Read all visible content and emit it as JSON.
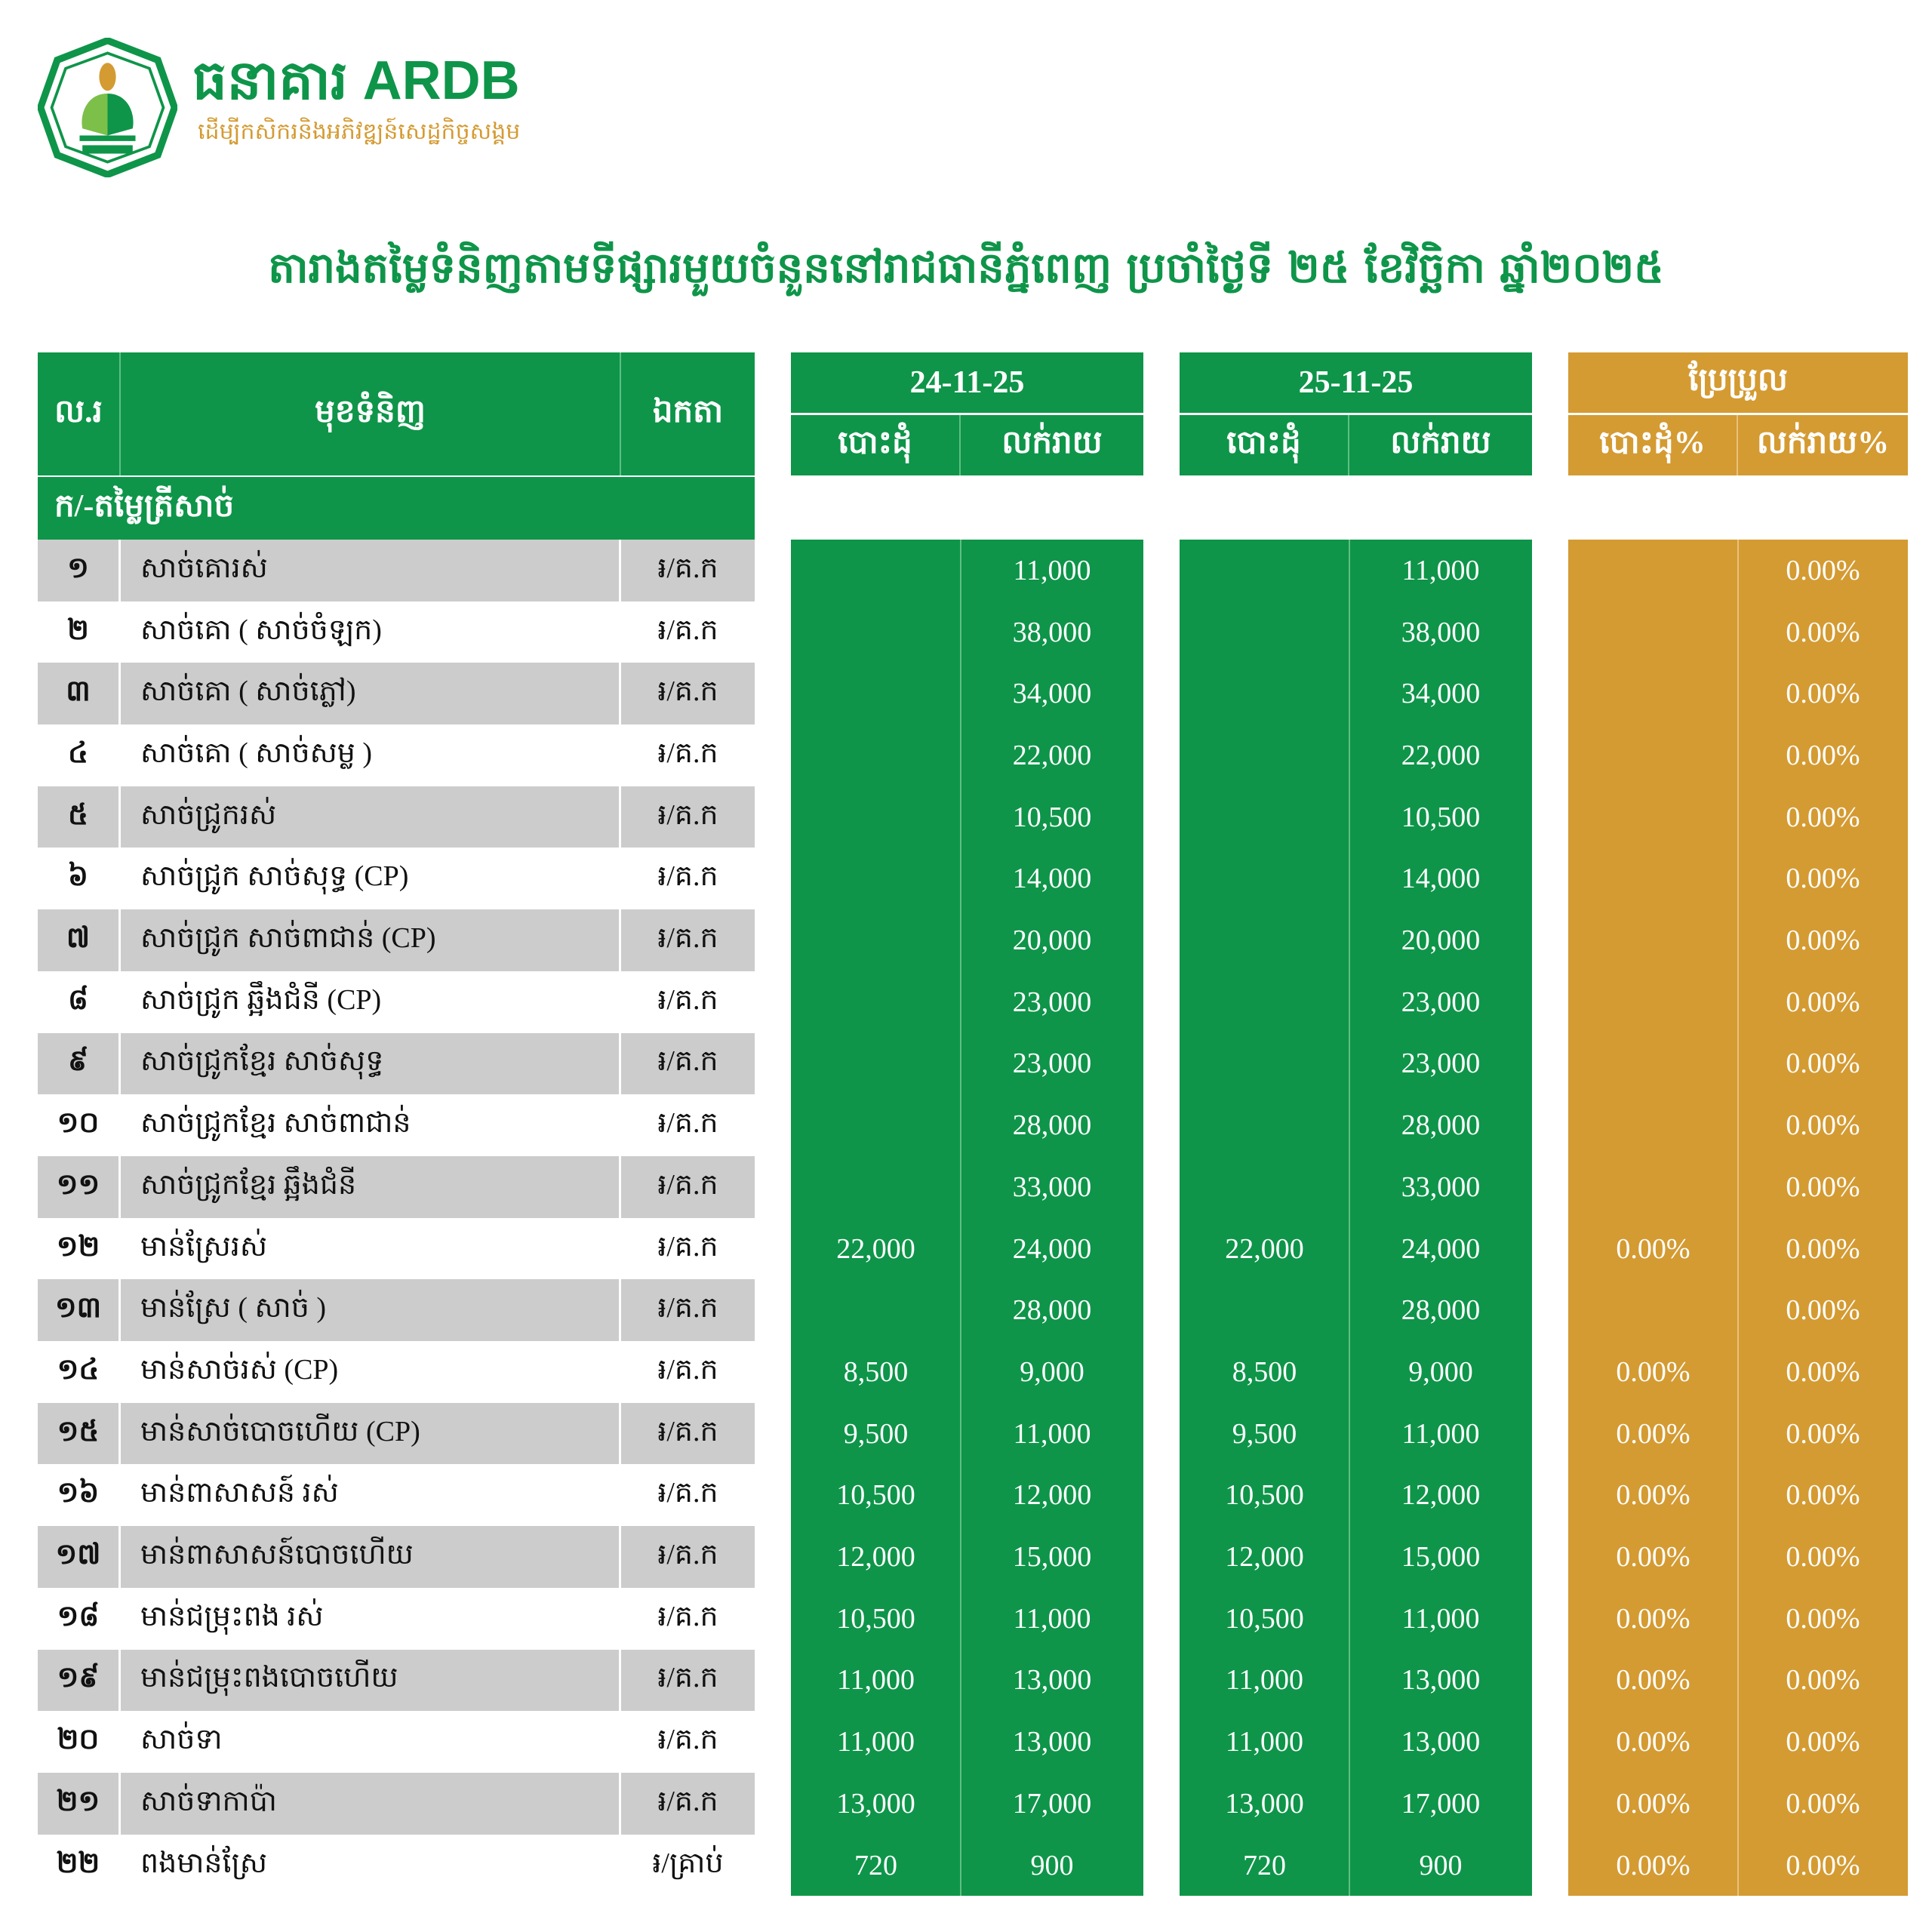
{
  "brand": {
    "name": "ធនាគារ ARDB",
    "tagline": "ដើម្បីកសិករនិងអភិវឌ្ឍន៍សេដ្ឋកិច្ចសង្គម"
  },
  "title": "តារាងតម្លៃទំនិញតាមទីផ្សារមួយចំនួននៅរាជធានីភ្នំពេញ ប្រចាំថ្ងៃទី ២៥ ខែវិច្ឆិកា ឆ្នាំ២០២៥",
  "colors": {
    "green": "#0e9549",
    "gold": "#d49b33",
    "row_gray": "#cccccc"
  },
  "table": {
    "headers": {
      "no": "ល.រ",
      "item": "មុខទំនិញ",
      "unit": "ឯកតា",
      "date1": "24-11-25",
      "date2": "25-11-25",
      "change": "ប្រែប្រួល",
      "wholesale": "បោះដុំ",
      "retail": "លក់រាយ",
      "wholesale_pct": "បោះដុំ%",
      "retail_pct": "លក់រាយ%"
    },
    "section": "ក/-តម្លៃត្រីសាច់",
    "rows": [
      {
        "no": "១",
        "item": "សាច់គោរស់",
        "unit": "៛/គ.ក",
        "w1": "",
        "r1": "11,000",
        "w2": "",
        "r2": "11,000",
        "wp": "",
        "rp": "0.00%"
      },
      {
        "no": "២",
        "item": "សាច់គោ ( សាច់ចំឡក)",
        "unit": "៛/គ.ក",
        "w1": "",
        "r1": "38,000",
        "w2": "",
        "r2": "38,000",
        "wp": "",
        "rp": "0.00%"
      },
      {
        "no": "៣",
        "item": "សាច់គោ ( សាច់ភ្លៅ)",
        "unit": "៛/គ.ក",
        "w1": "",
        "r1": "34,000",
        "w2": "",
        "r2": "34,000",
        "wp": "",
        "rp": "0.00%"
      },
      {
        "no": "៤",
        "item": "សាច់គោ ( សាច់សម្ល )",
        "unit": "៛/គ.ក",
        "w1": "",
        "r1": "22,000",
        "w2": "",
        "r2": "22,000",
        "wp": "",
        "rp": "0.00%"
      },
      {
        "no": "៥",
        "item": "សាច់ជ្រូករស់",
        "unit": "៛/គ.ក",
        "w1": "",
        "r1": "10,500",
        "w2": "",
        "r2": "10,500",
        "wp": "",
        "rp": "0.00%"
      },
      {
        "no": "៦",
        "item": "សាច់ជ្រូក សាច់សុទ្ធ (CP)",
        "unit": "៛/គ.ក",
        "w1": "",
        "r1": "14,000",
        "w2": "",
        "r2": "14,000",
        "wp": "",
        "rp": "0.00%"
      },
      {
        "no": "៧",
        "item": "សាច់ជ្រូក សាច់ពាជាន់ (CP)",
        "unit": "៛/គ.ក",
        "w1": "",
        "r1": "20,000",
        "w2": "",
        "r2": "20,000",
        "wp": "",
        "rp": "0.00%"
      },
      {
        "no": "៨",
        "item": "សាច់ជ្រូក ឆ្អឹងជំនី (CP)",
        "unit": "៛/គ.ក",
        "w1": "",
        "r1": "23,000",
        "w2": "",
        "r2": "23,000",
        "wp": "",
        "rp": "0.00%"
      },
      {
        "no": "៩",
        "item": "សាច់ជ្រូកខ្មែរ សាច់សុទ្ធ",
        "unit": "៛/គ.ក",
        "w1": "",
        "r1": "23,000",
        "w2": "",
        "r2": "23,000",
        "wp": "",
        "rp": "0.00%"
      },
      {
        "no": "១០",
        "item": "សាច់ជ្រូកខ្មែរ សាច់ពាជាន់",
        "unit": "៛/គ.ក",
        "w1": "",
        "r1": "28,000",
        "w2": "",
        "r2": "28,000",
        "wp": "",
        "rp": "0.00%"
      },
      {
        "no": "១១",
        "item": "សាច់ជ្រូកខ្មែរ ឆ្អឹងជំនី",
        "unit": "៛/គ.ក",
        "w1": "",
        "r1": "33,000",
        "w2": "",
        "r2": "33,000",
        "wp": "",
        "rp": "0.00%"
      },
      {
        "no": "១២",
        "item": "មាន់ស្រែរស់",
        "unit": "៛/គ.ក",
        "w1": "22,000",
        "r1": "24,000",
        "w2": "22,000",
        "r2": "24,000",
        "wp": "0.00%",
        "rp": "0.00%"
      },
      {
        "no": "១៣",
        "item": "មាន់ស្រែ ( សាច់ )",
        "unit": "៛/គ.ក",
        "w1": "",
        "r1": "28,000",
        "w2": "",
        "r2": "28,000",
        "wp": "",
        "rp": "0.00%"
      },
      {
        "no": "១៤",
        "item": "មាន់សាច់រស់ (CP)",
        "unit": "៛/គ.ក",
        "w1": "8,500",
        "r1": "9,000",
        "w2": "8,500",
        "r2": "9,000",
        "wp": "0.00%",
        "rp": "0.00%"
      },
      {
        "no": "១៥",
        "item": "មាន់សាច់បោចហើយ (CP)",
        "unit": "៛/គ.ក",
        "w1": "9,500",
        "r1": "11,000",
        "w2": "9,500",
        "r2": "11,000",
        "wp": "0.00%",
        "rp": "0.00%"
      },
      {
        "no": "១៦",
        "item": "មាន់ពាសាសន៍ រស់",
        "unit": "៛/គ.ក",
        "w1": "10,500",
        "r1": "12,000",
        "w2": "10,500",
        "r2": "12,000",
        "wp": "0.00%",
        "rp": "0.00%"
      },
      {
        "no": "១៧",
        "item": "មាន់ពាសាសន៍បោចហើយ",
        "unit": "៛/គ.ក",
        "w1": "12,000",
        "r1": "15,000",
        "w2": "12,000",
        "r2": "15,000",
        "wp": "0.00%",
        "rp": "0.00%"
      },
      {
        "no": "១៨",
        "item": "មាន់ជម្រុះពង រស់",
        "unit": "៛/គ.ក",
        "w1": "10,500",
        "r1": "11,000",
        "w2": "10,500",
        "r2": "11,000",
        "wp": "0.00%",
        "rp": "0.00%"
      },
      {
        "no": "១៩",
        "item": "មាន់ជម្រុះពងបោចហើយ",
        "unit": "៛/គ.ក",
        "w1": "11,000",
        "r1": "13,000",
        "w2": "11,000",
        "r2": "13,000",
        "wp": "0.00%",
        "rp": "0.00%"
      },
      {
        "no": "២០",
        "item": "សាច់ទា",
        "unit": "៛/គ.ក",
        "w1": "11,000",
        "r1": "13,000",
        "w2": "11,000",
        "r2": "13,000",
        "wp": "0.00%",
        "rp": "0.00%"
      },
      {
        "no": "២១",
        "item": "សាច់ទាកាប៉ា",
        "unit": "៛/គ.ក",
        "w1": "13,000",
        "r1": "17,000",
        "w2": "13,000",
        "r2": "17,000",
        "wp": "0.00%",
        "rp": "0.00%"
      },
      {
        "no": "២២",
        "item": "ពងមាន់ស្រែ",
        "unit": "៛/គ្រាប់",
        "w1": "720",
        "r1": "900",
        "w2": "720",
        "r2": "900",
        "wp": "0.00%",
        "rp": "0.00%"
      }
    ]
  }
}
